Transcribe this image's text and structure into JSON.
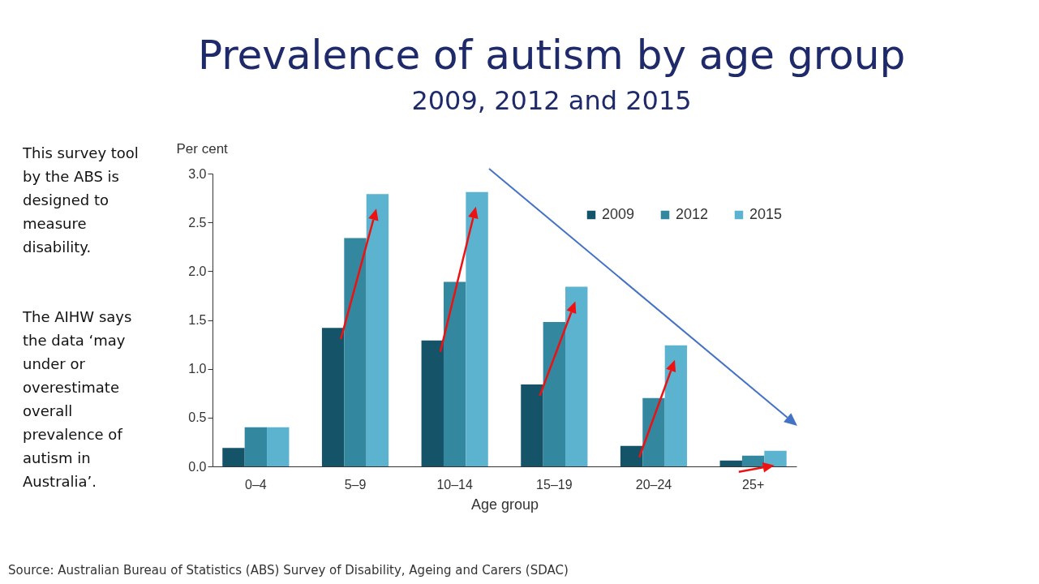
{
  "chart_data": {
    "type": "bar",
    "title": "Prevalence of autism by age group",
    "subtitle": "2009, 2012 and 2015",
    "xlabel": "Age group",
    "ylabel": "Per cent",
    "categories": [
      "0–4",
      "5–9",
      "10–14",
      "15–19",
      "20–24",
      "25+"
    ],
    "series": [
      {
        "name": "2009",
        "color": "#155369",
        "values": [
          0.19,
          1.42,
          1.29,
          0.84,
          0.21,
          0.06
        ]
      },
      {
        "name": "2012",
        "color": "#33879f",
        "values": [
          0.4,
          2.34,
          1.89,
          1.48,
          0.7,
          0.11
        ]
      },
      {
        "name": "2015",
        "color": "#5bb3cf",
        "values": [
          0.4,
          2.79,
          2.81,
          1.84,
          1.24,
          0.16
        ]
      }
    ],
    "ylim": [
      0,
      3
    ],
    "yticks": [
      {
        "value": 0,
        "label": "0.0"
      },
      0.5,
      {
        "value": 1,
        "label": "1.0"
      },
      1.5,
      {
        "value": 2,
        "label": "2.0"
      },
      2.5,
      {
        "value": 3,
        "label": "3.0"
      }
    ],
    "grid": false,
    "legend": "top right",
    "annotations": [
      "This survey tool by the ABS is designed to measure disability.",
      "The AIHW says the data ‘may under or overestimate overall prevalence of autism in Australia’.",
      "Source: Australian Bureau of Statistics (ABS) Survey of Disability, Ageing and Carers (SDAC)"
    ]
  }
}
